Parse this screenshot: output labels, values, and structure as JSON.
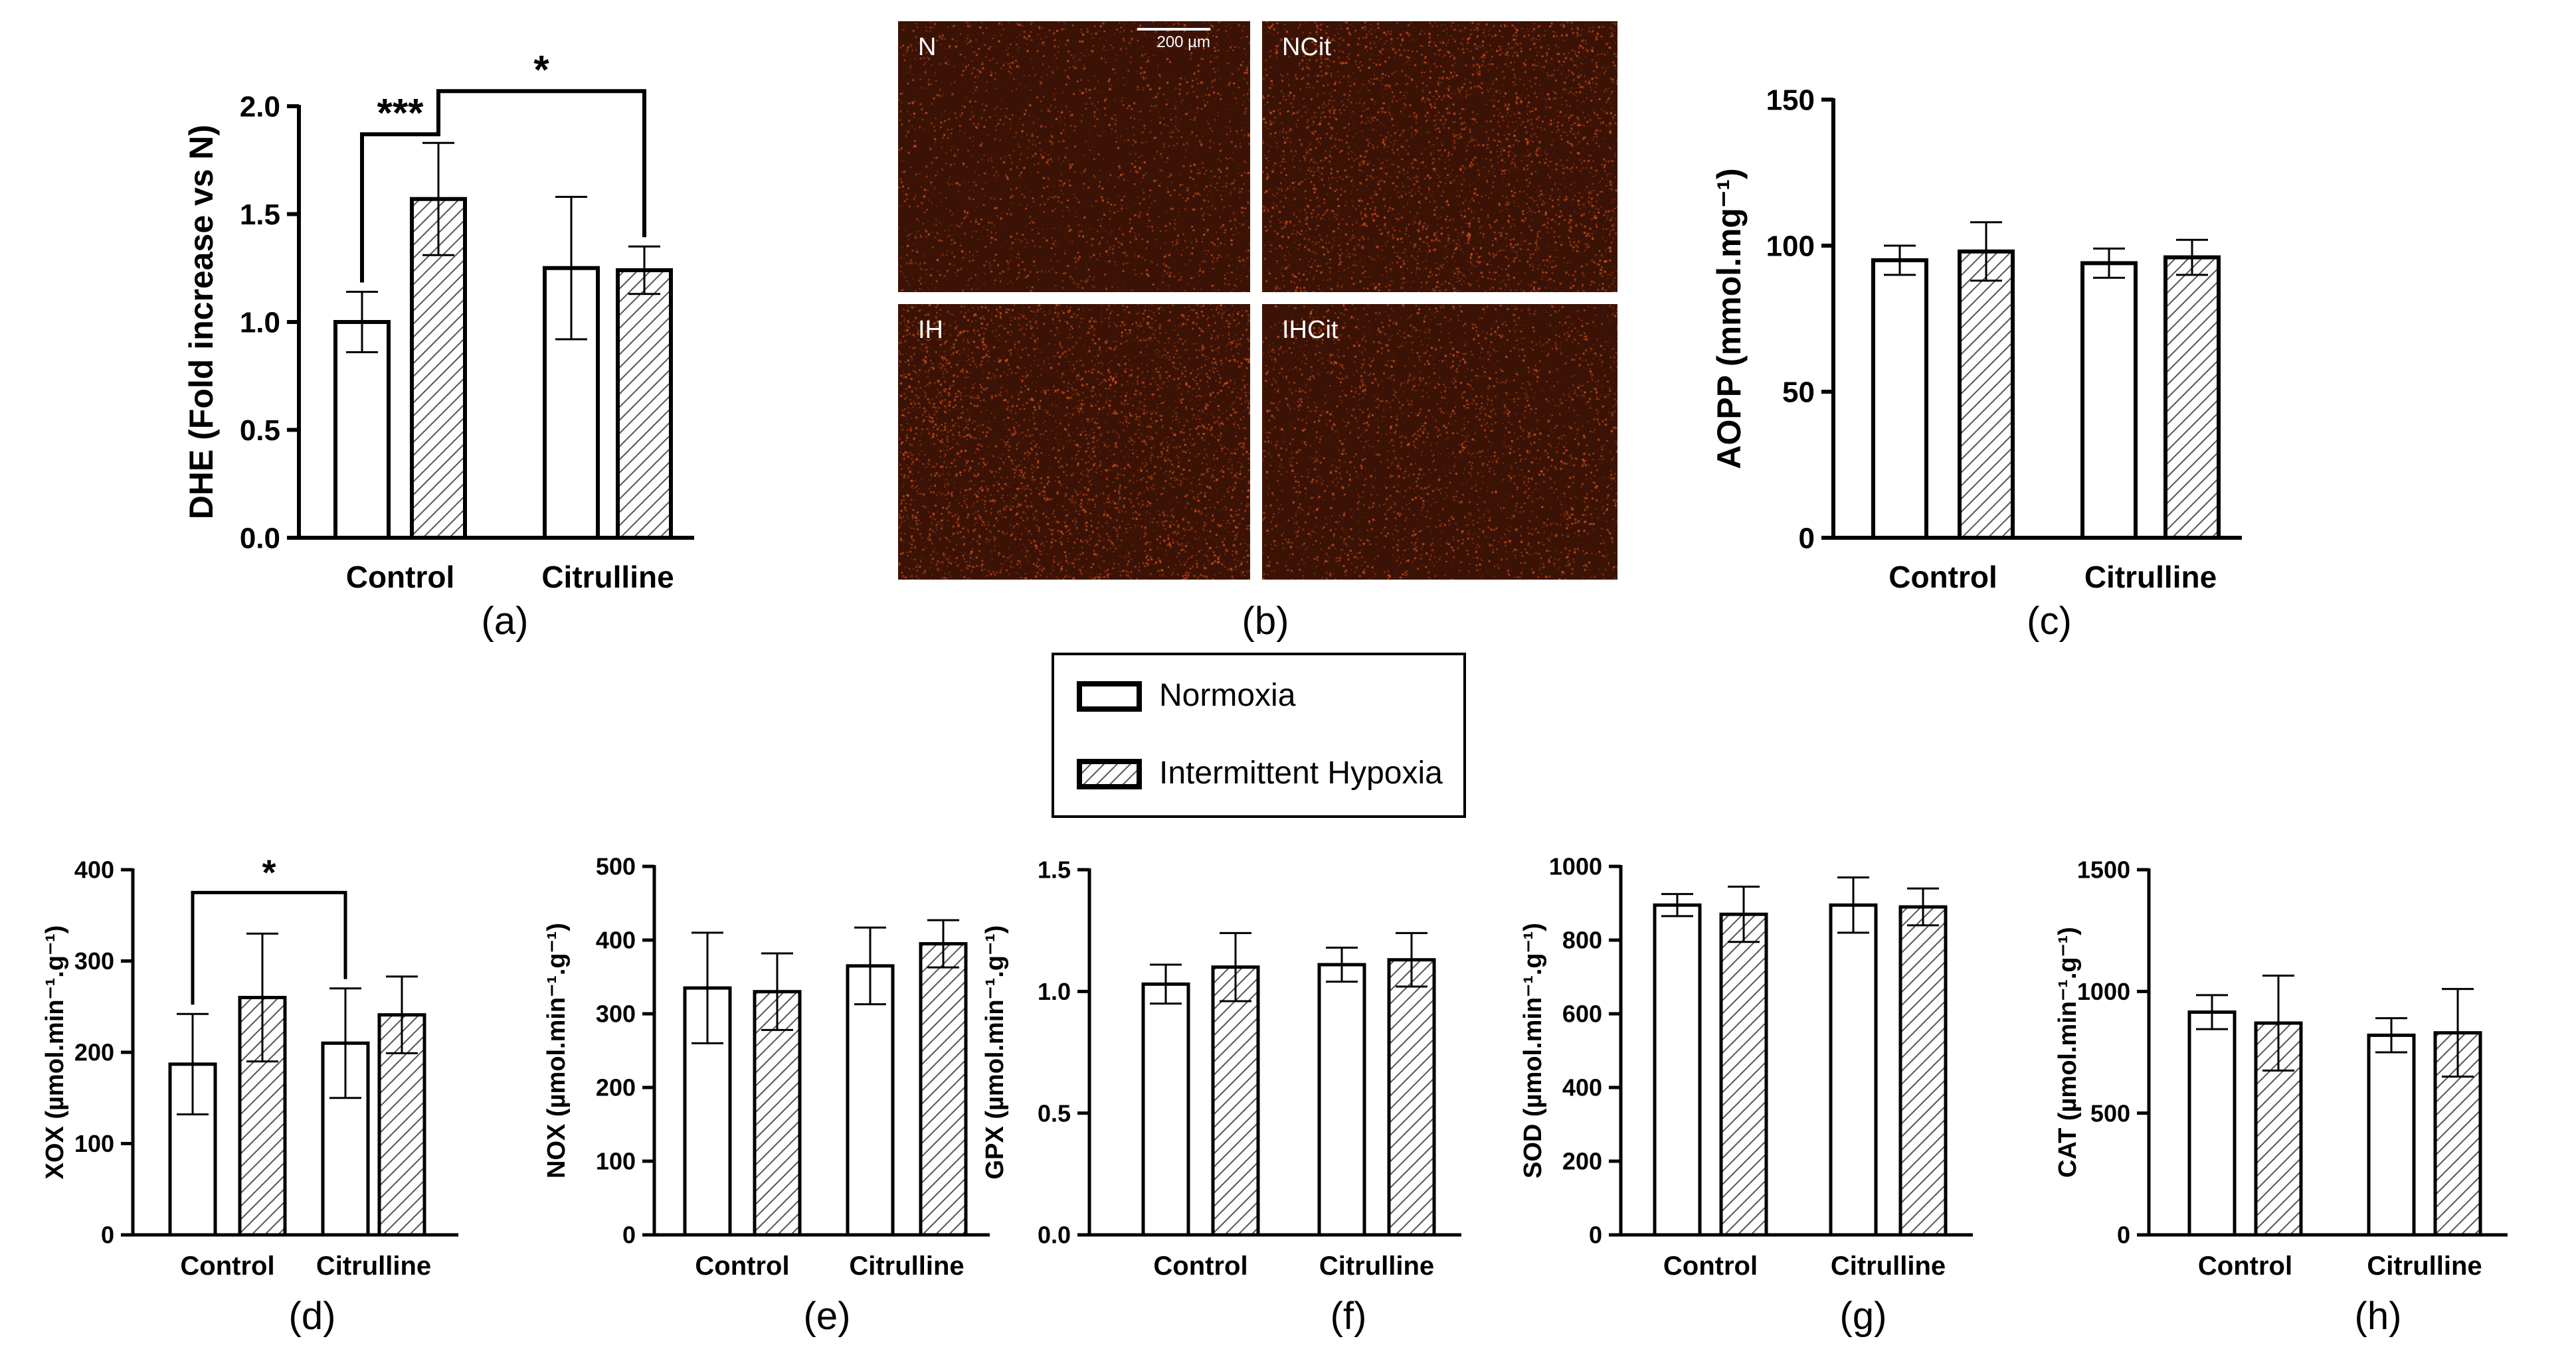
{
  "legend": {
    "items": [
      {
        "label": "Normoxia",
        "pattern": "open"
      },
      {
        "label": "Intermittent Hypoxia",
        "pattern": "hatched"
      }
    ]
  },
  "micrographs": {
    "panel_label": "(b)",
    "scale_bar": "200 µm",
    "labels": [
      "N",
      "NCit",
      "IH",
      "IHCit"
    ],
    "colors": {
      "background": "#3a1206",
      "speckle": "#d9541a"
    }
  },
  "chart_data": [
    {
      "id": "a",
      "type": "bar",
      "panel_label": "(a)",
      "ylabel": "DHE (Fold increase vs N)",
      "ylim": [
        0,
        2.0
      ],
      "yticks": [
        "0.0",
        "0.5",
        "1.0",
        "1.5",
        "2.0"
      ],
      "categories": [
        "Control",
        "Citrulline"
      ],
      "series": [
        {
          "name": "Normoxia",
          "values": [
            1.0,
            1.25
          ],
          "errors": [
            0.14,
            0.33
          ]
        },
        {
          "name": "Intermittent Hypoxia",
          "values": [
            1.57,
            1.24
          ],
          "errors": [
            0.26,
            0.11
          ]
        }
      ],
      "significance": [
        {
          "from": [
            0,
            0
          ],
          "to": [
            1,
            0
          ],
          "label": "***",
          "level": 1.87
        },
        {
          "from": [
            1,
            0
          ],
          "to": [
            1,
            1
          ],
          "label": "*",
          "level": 2.07
        }
      ]
    },
    {
      "id": "c",
      "type": "bar",
      "panel_label": "(c)",
      "ylabel": "AOPP (mmol.mg⁻¹)",
      "ylim": [
        0,
        150
      ],
      "yticks": [
        "0",
        "50",
        "100",
        "150"
      ],
      "categories": [
        "Control",
        "Citrulline"
      ],
      "series": [
        {
          "name": "Normoxia",
          "values": [
            95,
            94
          ],
          "errors": [
            5,
            5
          ]
        },
        {
          "name": "Intermittent Hypoxia",
          "values": [
            98,
            96
          ],
          "errors": [
            10,
            6
          ]
        }
      ],
      "significance": []
    },
    {
      "id": "d",
      "type": "bar",
      "panel_label": "(d)",
      "ylabel": "XOX (µmol.min⁻¹.g⁻¹)",
      "ylim": [
        0,
        400
      ],
      "yticks": [
        "0",
        "100",
        "200",
        "300",
        "400"
      ],
      "categories": [
        "Control",
        "Citrulline"
      ],
      "series": [
        {
          "name": "Normoxia",
          "values": [
            187,
            210
          ],
          "errors": [
            55,
            60
          ]
        },
        {
          "name": "Intermittent Hypoxia",
          "values": [
            260,
            241
          ],
          "errors": [
            70,
            42
          ]
        }
      ],
      "significance": [
        {
          "from": [
            0,
            0
          ],
          "to": [
            0,
            1
          ],
          "label": "*",
          "level": 375
        }
      ]
    },
    {
      "id": "e",
      "type": "bar",
      "panel_label": "(e)",
      "ylabel": "NOX (µmol.min⁻¹.g⁻¹)",
      "ylim": [
        0,
        500
      ],
      "yticks": [
        "0",
        "100",
        "200",
        "300",
        "400",
        "500"
      ],
      "categories": [
        "Control",
        "Citrulline"
      ],
      "series": [
        {
          "name": "Normoxia",
          "values": [
            335,
            365
          ],
          "errors": [
            75,
            52
          ]
        },
        {
          "name": "Intermittent Hypoxia",
          "values": [
            330,
            395
          ],
          "errors": [
            52,
            32
          ]
        }
      ],
      "significance": []
    },
    {
      "id": "f",
      "type": "bar",
      "panel_label": "(f)",
      "ylabel": "GPX (µmol.min⁻¹.g⁻¹)",
      "ylim": [
        0,
        1.5
      ],
      "yticks": [
        "0.0",
        "0.5",
        "1.0",
        "1.5"
      ],
      "categories": [
        "Control",
        "Citrulline"
      ],
      "series": [
        {
          "name": "Normoxia",
          "values": [
            1.03,
            1.11
          ],
          "errors": [
            0.08,
            0.07
          ]
        },
        {
          "name": "Intermittent Hypoxia",
          "values": [
            1.1,
            1.13
          ],
          "errors": [
            0.14,
            0.11
          ]
        }
      ],
      "significance": []
    },
    {
      "id": "g",
      "type": "bar",
      "panel_label": "(g)",
      "ylabel": "SOD (µmol.min⁻¹.g⁻¹)",
      "ylim": [
        0,
        1000
      ],
      "yticks": [
        "0",
        "200",
        "400",
        "600",
        "800",
        "1000"
      ],
      "categories": [
        "Control",
        "Citrulline"
      ],
      "series": [
        {
          "name": "Normoxia",
          "values": [
            895,
            895
          ],
          "errors": [
            30,
            75
          ]
        },
        {
          "name": "Intermittent Hypoxia",
          "values": [
            870,
            890
          ],
          "errors": [
            75,
            50
          ]
        }
      ],
      "significance": []
    },
    {
      "id": "h",
      "type": "bar",
      "panel_label": "(h)",
      "ylabel": "CAT (µmol.min⁻¹.g⁻¹)",
      "ylim": [
        0,
        1500
      ],
      "yticks": [
        "0",
        "500",
        "1000",
        "1500"
      ],
      "categories": [
        "Control",
        "Citrulline"
      ],
      "series": [
        {
          "name": "Normoxia",
          "values": [
            915,
            820
          ],
          "errors": [
            70,
            70
          ]
        },
        {
          "name": "Intermittent Hypoxia",
          "values": [
            870,
            830
          ],
          "errors": [
            195,
            180
          ]
        }
      ],
      "significance": []
    }
  ]
}
